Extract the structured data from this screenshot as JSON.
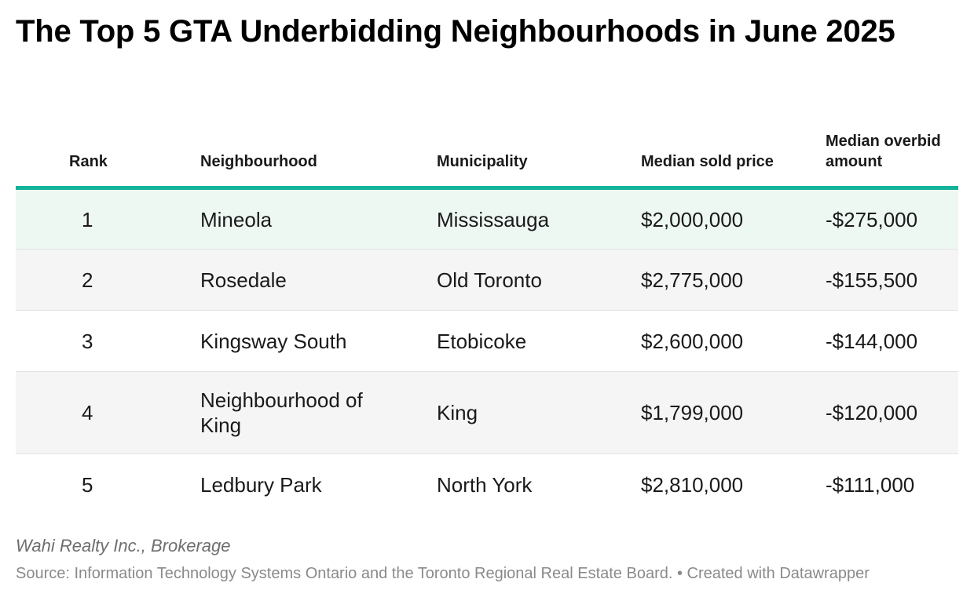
{
  "title": "The Top 5 GTA Underbidding Neighbourhoods in June 2025",
  "colors": {
    "accent": "#13b29a",
    "first_row_bg": "#eef8f3",
    "alt_row_bg": "#f5f5f5"
  },
  "chart_data": {
    "type": "table",
    "title": "The Top 5 GTA Underbidding Neighbourhoods in June 2025",
    "columns": [
      "Rank",
      "Neighbourhood",
      "Municipality",
      "Median sold price",
      "Median overbid amount"
    ],
    "rows": [
      [
        "1",
        "Mineola",
        "Mississauga",
        "$2,000,000",
        "-$275,000"
      ],
      [
        "2",
        "Rosedale",
        "Old Toronto",
        "$2,775,000",
        "-$155,500"
      ],
      [
        "3",
        "Kingsway South",
        "Etobicoke",
        "$2,600,000",
        "-$144,000"
      ],
      [
        "4",
        "Neighbourhood of King",
        "King",
        "$1,799,000",
        "-$120,000"
      ],
      [
        "5",
        "Ledbury Park",
        "North York",
        "$2,810,000",
        "-$111,000"
      ]
    ]
  },
  "footer": {
    "brand": "Wahi Realty Inc., Brokerage",
    "source": "Source: Information Technology Systems Ontario and the Toronto Regional Real Estate Board. • Created with Datawrapper"
  }
}
